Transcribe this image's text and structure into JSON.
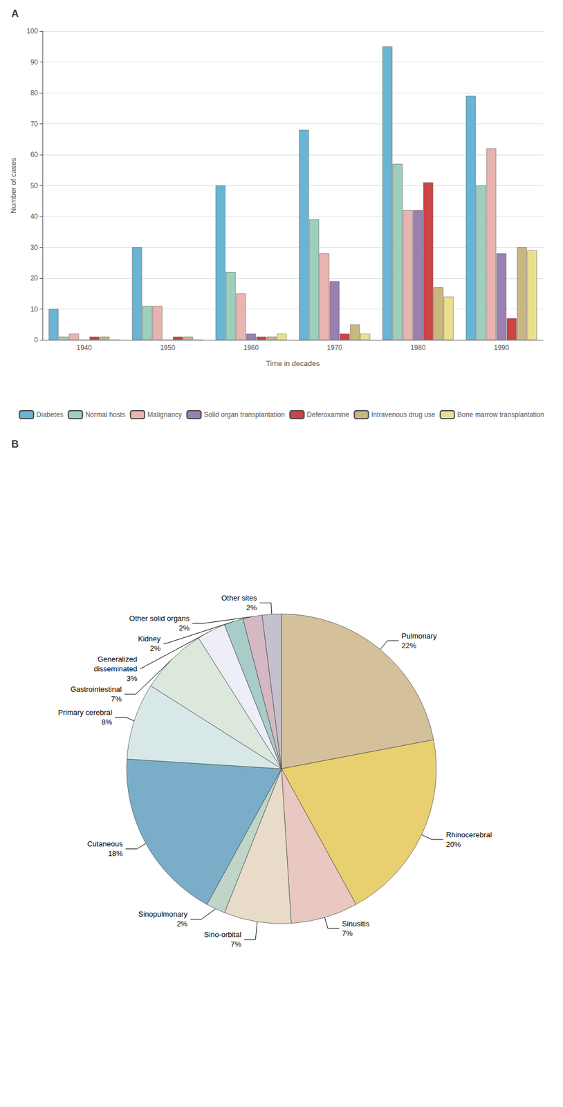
{
  "chart_data": [
    {
      "type": "bar",
      "title": "A",
      "xlabel": "Time in decades",
      "ylabel": "Number of cases",
      "categories": [
        "1940",
        "1950",
        "1960",
        "1970",
        "1980",
        "1990"
      ],
      "series": [
        {
          "name": "Diabetes",
          "color": "#6ab4d4",
          "values": [
            10,
            30,
            50,
            68,
            95,
            79
          ]
        },
        {
          "name": "Normal hosts",
          "color": "#9ecfbd",
          "values": [
            1,
            11,
            22,
            39,
            57,
            50
          ]
        },
        {
          "name": "Malignancy",
          "color": "#e8b4b0",
          "values": [
            2,
            11,
            15,
            28,
            42,
            62
          ]
        },
        {
          "name": "Solid organ transplantation",
          "color": "#9980b0",
          "values": [
            0,
            0,
            2,
            19,
            42,
            28
          ]
        },
        {
          "name": "Deferoxamine",
          "color": "#cc4444",
          "values": [
            1,
            1,
            1,
            2,
            51,
            7
          ]
        },
        {
          "name": "Intravenous drug use",
          "color": "#c8b880",
          "values": [
            1,
            1,
            1,
            5,
            17,
            30
          ]
        },
        {
          "name": "Bone marrow transplantation",
          "color": "#e8e090",
          "values": [
            0,
            0,
            2,
            2,
            14,
            29
          ]
        }
      ],
      "ylim": [
        0,
        100
      ],
      "yticks": [
        0,
        10,
        20,
        30,
        40,
        50,
        60,
        70,
        80,
        90,
        100
      ],
      "grid": true,
      "legend": "bottom"
    },
    {
      "type": "pie",
      "title": "B",
      "categories": [
        "Pulmonary",
        "Rhinocerebral",
        "Sinusitis",
        "Sino-orbital",
        "Sinopulmonary",
        "Cutaneous",
        "Primary cerebral",
        "Gastrointestinal",
        "Generalized\ndisseminated",
        "Kidney",
        "Other solid organs",
        "Other sites"
      ],
      "values": [
        22,
        20,
        7,
        7,
        2,
        18,
        8,
        7,
        3,
        2,
        2,
        2
      ],
      "value_labels": [
        "22%",
        "20%",
        "7%",
        "7%",
        "2%",
        "18%",
        "8%",
        "7%",
        "3%",
        "2%",
        "2%",
        "2%"
      ],
      "colors": [
        "#d4c09a",
        "#e8d070",
        "#e8c8c0",
        "#e8dcc8",
        "#c0d4c8",
        "#7aaec8",
        "#d8e8e8",
        "#dce8dc",
        "#eeeef8",
        "#a8ccc8",
        "#d4b8c4",
        "#c4c0cc"
      ],
      "data_labels": true
    }
  ]
}
